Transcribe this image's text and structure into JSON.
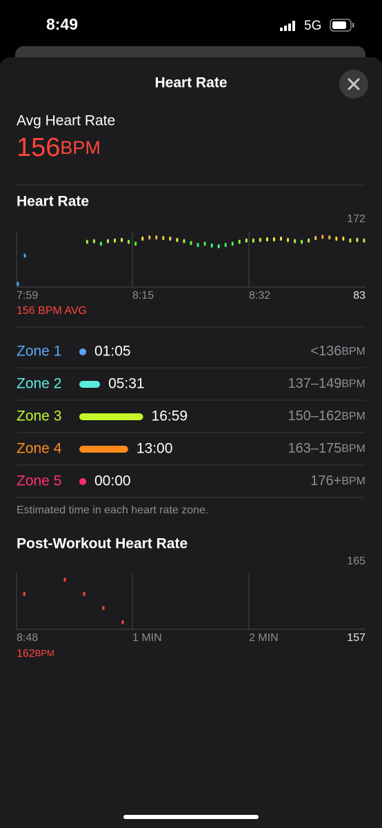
{
  "status_bar": {
    "time": "8:49",
    "network": "5G"
  },
  "header": {
    "title": "Heart Rate"
  },
  "average": {
    "label": "Avg Heart Rate",
    "value": 156,
    "unit": "BPM"
  },
  "heart_rate_chart": {
    "title": "Heart Rate",
    "max": 172,
    "min": 83,
    "x_labels": [
      "7:59",
      "8:15",
      "8:32"
    ],
    "avg_label": "156 BPM AVG",
    "samples": [
      88,
      133,
      null,
      null,
      null,
      null,
      null,
      null,
      null,
      null,
      155,
      156,
      152,
      156,
      157,
      158,
      155,
      152,
      160,
      162,
      162,
      161,
      160,
      158,
      156,
      153,
      150,
      152,
      149,
      148,
      150,
      152,
      155,
      157,
      157,
      158,
      159,
      159,
      160,
      158,
      156,
      155,
      157,
      161,
      163,
      162,
      160,
      160,
      157,
      158,
      157
    ]
  },
  "zones": [
    {
      "name": "Zone 1",
      "duration": "01:05",
      "range": "<136",
      "unit": "BPM",
      "color": "#5aa7f2"
    },
    {
      "name": "Zone 2",
      "duration": "05:31",
      "range": "137–149",
      "unit": "BPM",
      "color": "#5cecde"
    },
    {
      "name": "Zone 3",
      "duration": "16:59",
      "range": "150–162",
      "unit": "BPM",
      "color": "#c6f72a"
    },
    {
      "name": "Zone 4",
      "duration": "13:00",
      "range": "163–175",
      "unit": "BPM",
      "color": "#ff8a1c"
    },
    {
      "name": "Zone 5",
      "duration": "00:00",
      "range": "176+",
      "unit": "BPM",
      "color": "#ff2d78"
    }
  ],
  "zones_note": "Estimated time in each heart rate zone.",
  "post_workout": {
    "title": "Post-Workout Heart Rate",
    "max": 165,
    "min": 157,
    "x_labels": [
      "8:48",
      "1 MIN",
      "2 MIN"
    ],
    "start_value": 162,
    "unit": "BPM",
    "x": [
      4,
      25,
      35,
      45,
      55
    ],
    "values": [
      162,
      164,
      162,
      160,
      158
    ]
  }
}
